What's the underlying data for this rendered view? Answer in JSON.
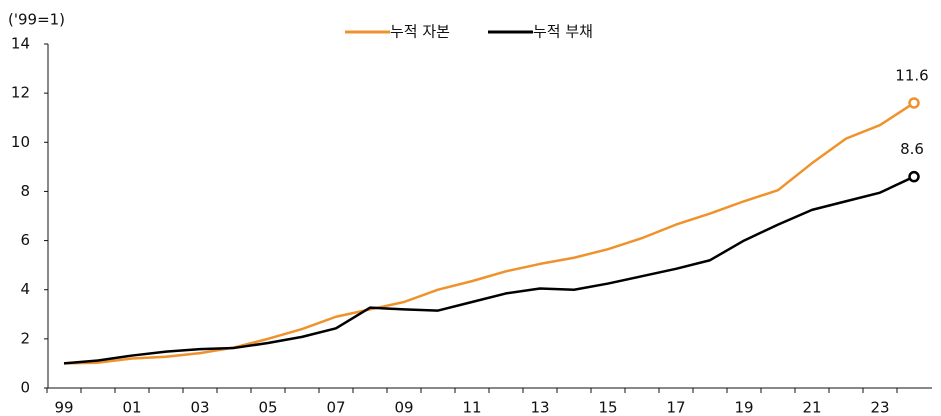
{
  "chart_data": {
    "type": "line",
    "y_label": "('99=1)",
    "categories": [
      "99",
      null,
      "01",
      null,
      "03",
      null,
      "05",
      null,
      "07",
      null,
      "09",
      null,
      "11",
      null,
      "13",
      null,
      "15",
      null,
      "17",
      null,
      "19",
      null,
      "21",
      null,
      "23",
      null
    ],
    "series": [
      {
        "name": "누적 자본",
        "color": "#f0922b",
        "values": [
          1.0,
          1.03,
          1.2,
          1.27,
          1.42,
          1.65,
          2.0,
          2.4,
          2.9,
          3.2,
          3.5,
          4.0,
          4.35,
          4.75,
          5.05,
          5.3,
          5.65,
          6.1,
          6.65,
          7.1,
          7.6,
          8.05,
          9.15,
          10.15,
          10.7,
          11.6
        ]
      },
      {
        "name": "누적 부채",
        "color": "#000000",
        "values": [
          1.0,
          1.12,
          1.32,
          1.48,
          1.58,
          1.63,
          1.83,
          2.08,
          2.43,
          3.27,
          3.2,
          3.15,
          3.5,
          3.85,
          4.05,
          4.0,
          4.25,
          4.55,
          4.85,
          5.2,
          6.0,
          6.65,
          7.25,
          7.6,
          7.95,
          8.6
        ]
      }
    ],
    "ylim": [
      0,
      14
    ],
    "yticks": [
      0,
      2,
      4,
      6,
      8,
      10,
      12,
      14
    ],
    "grid": false
  }
}
